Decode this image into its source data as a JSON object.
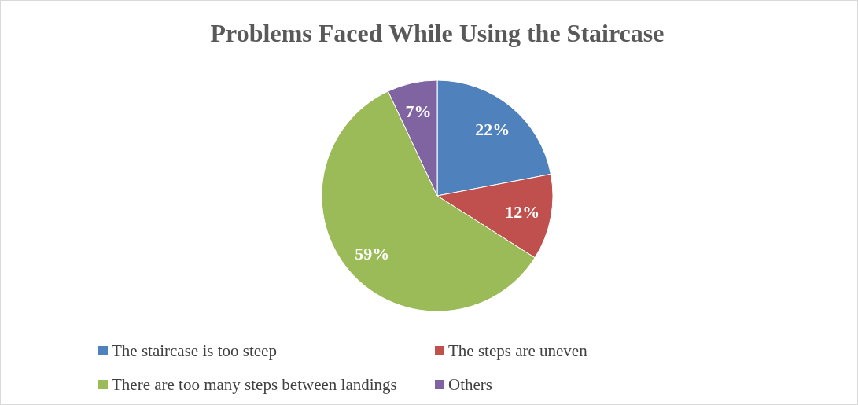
{
  "chart_data": {
    "type": "pie",
    "title": "Problems Faced While Using the Staircase",
    "categories": [
      "The staircase is too steep",
      "The steps are uneven",
      "There are too many steps between landings",
      "Others"
    ],
    "values": [
      22,
      12,
      59,
      7
    ],
    "colors": [
      "#4f81bd",
      "#c0504d",
      "#9bbb59",
      "#8064a2"
    ],
    "value_labels": [
      "22%",
      "12%",
      "59%",
      "7%"
    ],
    "legend": "bottom"
  }
}
